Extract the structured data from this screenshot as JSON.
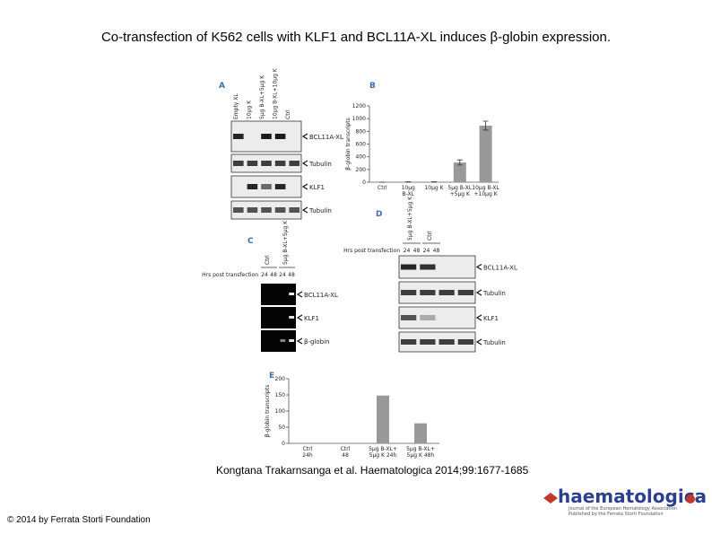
{
  "header": {
    "title": "Co-transfection of K562 cells with KLF1 and BCL11A-XL induces β-globin expression."
  },
  "figure": {
    "panel_a": {
      "label": "A",
      "lanes": [
        "Empty XL",
        "10µg K",
        "5µg B-XL+5µg K",
        "10µg B-XL+10µg K",
        "Ctrl"
      ],
      "bands": [
        "BCL11A-XL",
        "Tubulin",
        "KLF1",
        "Tubulin"
      ]
    },
    "panel_b": {
      "label": "B",
      "type": "bar",
      "y_label": "β-globin transcripts",
      "categories": [
        [
          "Ctrl"
        ],
        [
          "10µg",
          "B-XL"
        ],
        [
          "10µg K"
        ],
        [
          "5µg B-XL",
          "+5µg K"
        ],
        [
          "10µg B-XL",
          "+10µg K"
        ]
      ],
      "values": [
        0,
        5,
        5,
        310,
        890
      ],
      "errors": [
        0,
        2,
        2,
        40,
        70
      ],
      "ylim": [
        0,
        1200
      ],
      "yticks": [
        0,
        200,
        400,
        600,
        800,
        1000,
        1200
      ],
      "color": "#999999"
    },
    "panel_c": {
      "label": "C",
      "groups": [
        "Ctrl",
        "5µg B-XL+5µg K"
      ],
      "time_title": "Hrs post transfection",
      "times": [
        "24",
        "48",
        "24",
        "48"
      ],
      "bands": [
        "BCL11A-XL",
        "KLF1",
        "β-globin"
      ]
    },
    "panel_d": {
      "label": "D",
      "groups": [
        "5µg B-XL+5µg K",
        "Ctrl"
      ],
      "time_title": "Hrs post transfection",
      "times": [
        "24",
        "48",
        "24",
        "48"
      ],
      "bands": [
        "BCL11A-XL",
        "Tubulin",
        "KLF1",
        "Tubulin"
      ]
    },
    "panel_e": {
      "label": "E",
      "type": "bar",
      "y_label": "β-globin transcripts",
      "categories": [
        [
          "Ctrl",
          "24h"
        ],
        [
          "Ctrl",
          "48"
        ],
        [
          "5µg B-XL+",
          "5µg K 24h"
        ],
        [
          "5µg B-XL+",
          "5µg K 48h"
        ]
      ],
      "values": [
        0,
        0,
        148,
        62
      ],
      "ylim": [
        0,
        200
      ],
      "yticks": [
        0,
        50,
        100,
        150,
        200
      ],
      "color": "#999999"
    }
  },
  "citation": "Kongtana Trakarnsanga et al. Haematologica 2014;99:1677-1685",
  "copyright": "© 2014 by Ferrata Storti Foundation",
  "logo": {
    "name": "haematologica",
    "tagline": [
      "Journal of the European Hematology Association",
      "Published by the Ferrata Storti Foundation"
    ]
  }
}
